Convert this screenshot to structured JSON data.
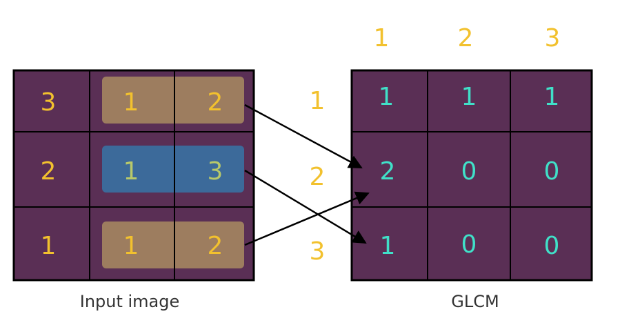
{
  "colors": {
    "cell_fill": "#5A2F55",
    "grid_line": "#000000",
    "input_text": "#F2C12E",
    "glcm_text": "#40E0C8",
    "index_text": "#F2C12E",
    "highlight_tan": "#A98B62",
    "highlight_blue": "#3B6E9E",
    "highlight_blue_text": "#B8C96A"
  },
  "input_image": {
    "caption": "Input image",
    "rows": [
      [
        "3",
        "1",
        "2"
      ],
      [
        "2",
        "1",
        "3"
      ],
      [
        "1",
        "1",
        "2"
      ]
    ],
    "highlighted_pairs": [
      {
        "row": 0,
        "style": "tan"
      },
      {
        "row": 1,
        "style": "blue"
      },
      {
        "row": 2,
        "style": "tan"
      }
    ]
  },
  "glcm": {
    "caption": "GLCM",
    "column_labels": [
      "1",
      "2",
      "3"
    ],
    "row_labels": [
      "1",
      "2",
      "3"
    ],
    "rows": [
      [
        "1",
        "1",
        "1"
      ],
      [
        "2",
        "0",
        "0"
      ],
      [
        "1",
        "0",
        "0"
      ]
    ]
  },
  "arrows": [
    {
      "from": "input pair (1,2) row 1",
      "to": "GLCM cell (1,2)"
    },
    {
      "from": "input pair (1,3) row 2",
      "to": "GLCM cell (1,3)"
    },
    {
      "from": "input pair (1,2) row 3",
      "to": "GLCM cell (1,2)"
    }
  ]
}
